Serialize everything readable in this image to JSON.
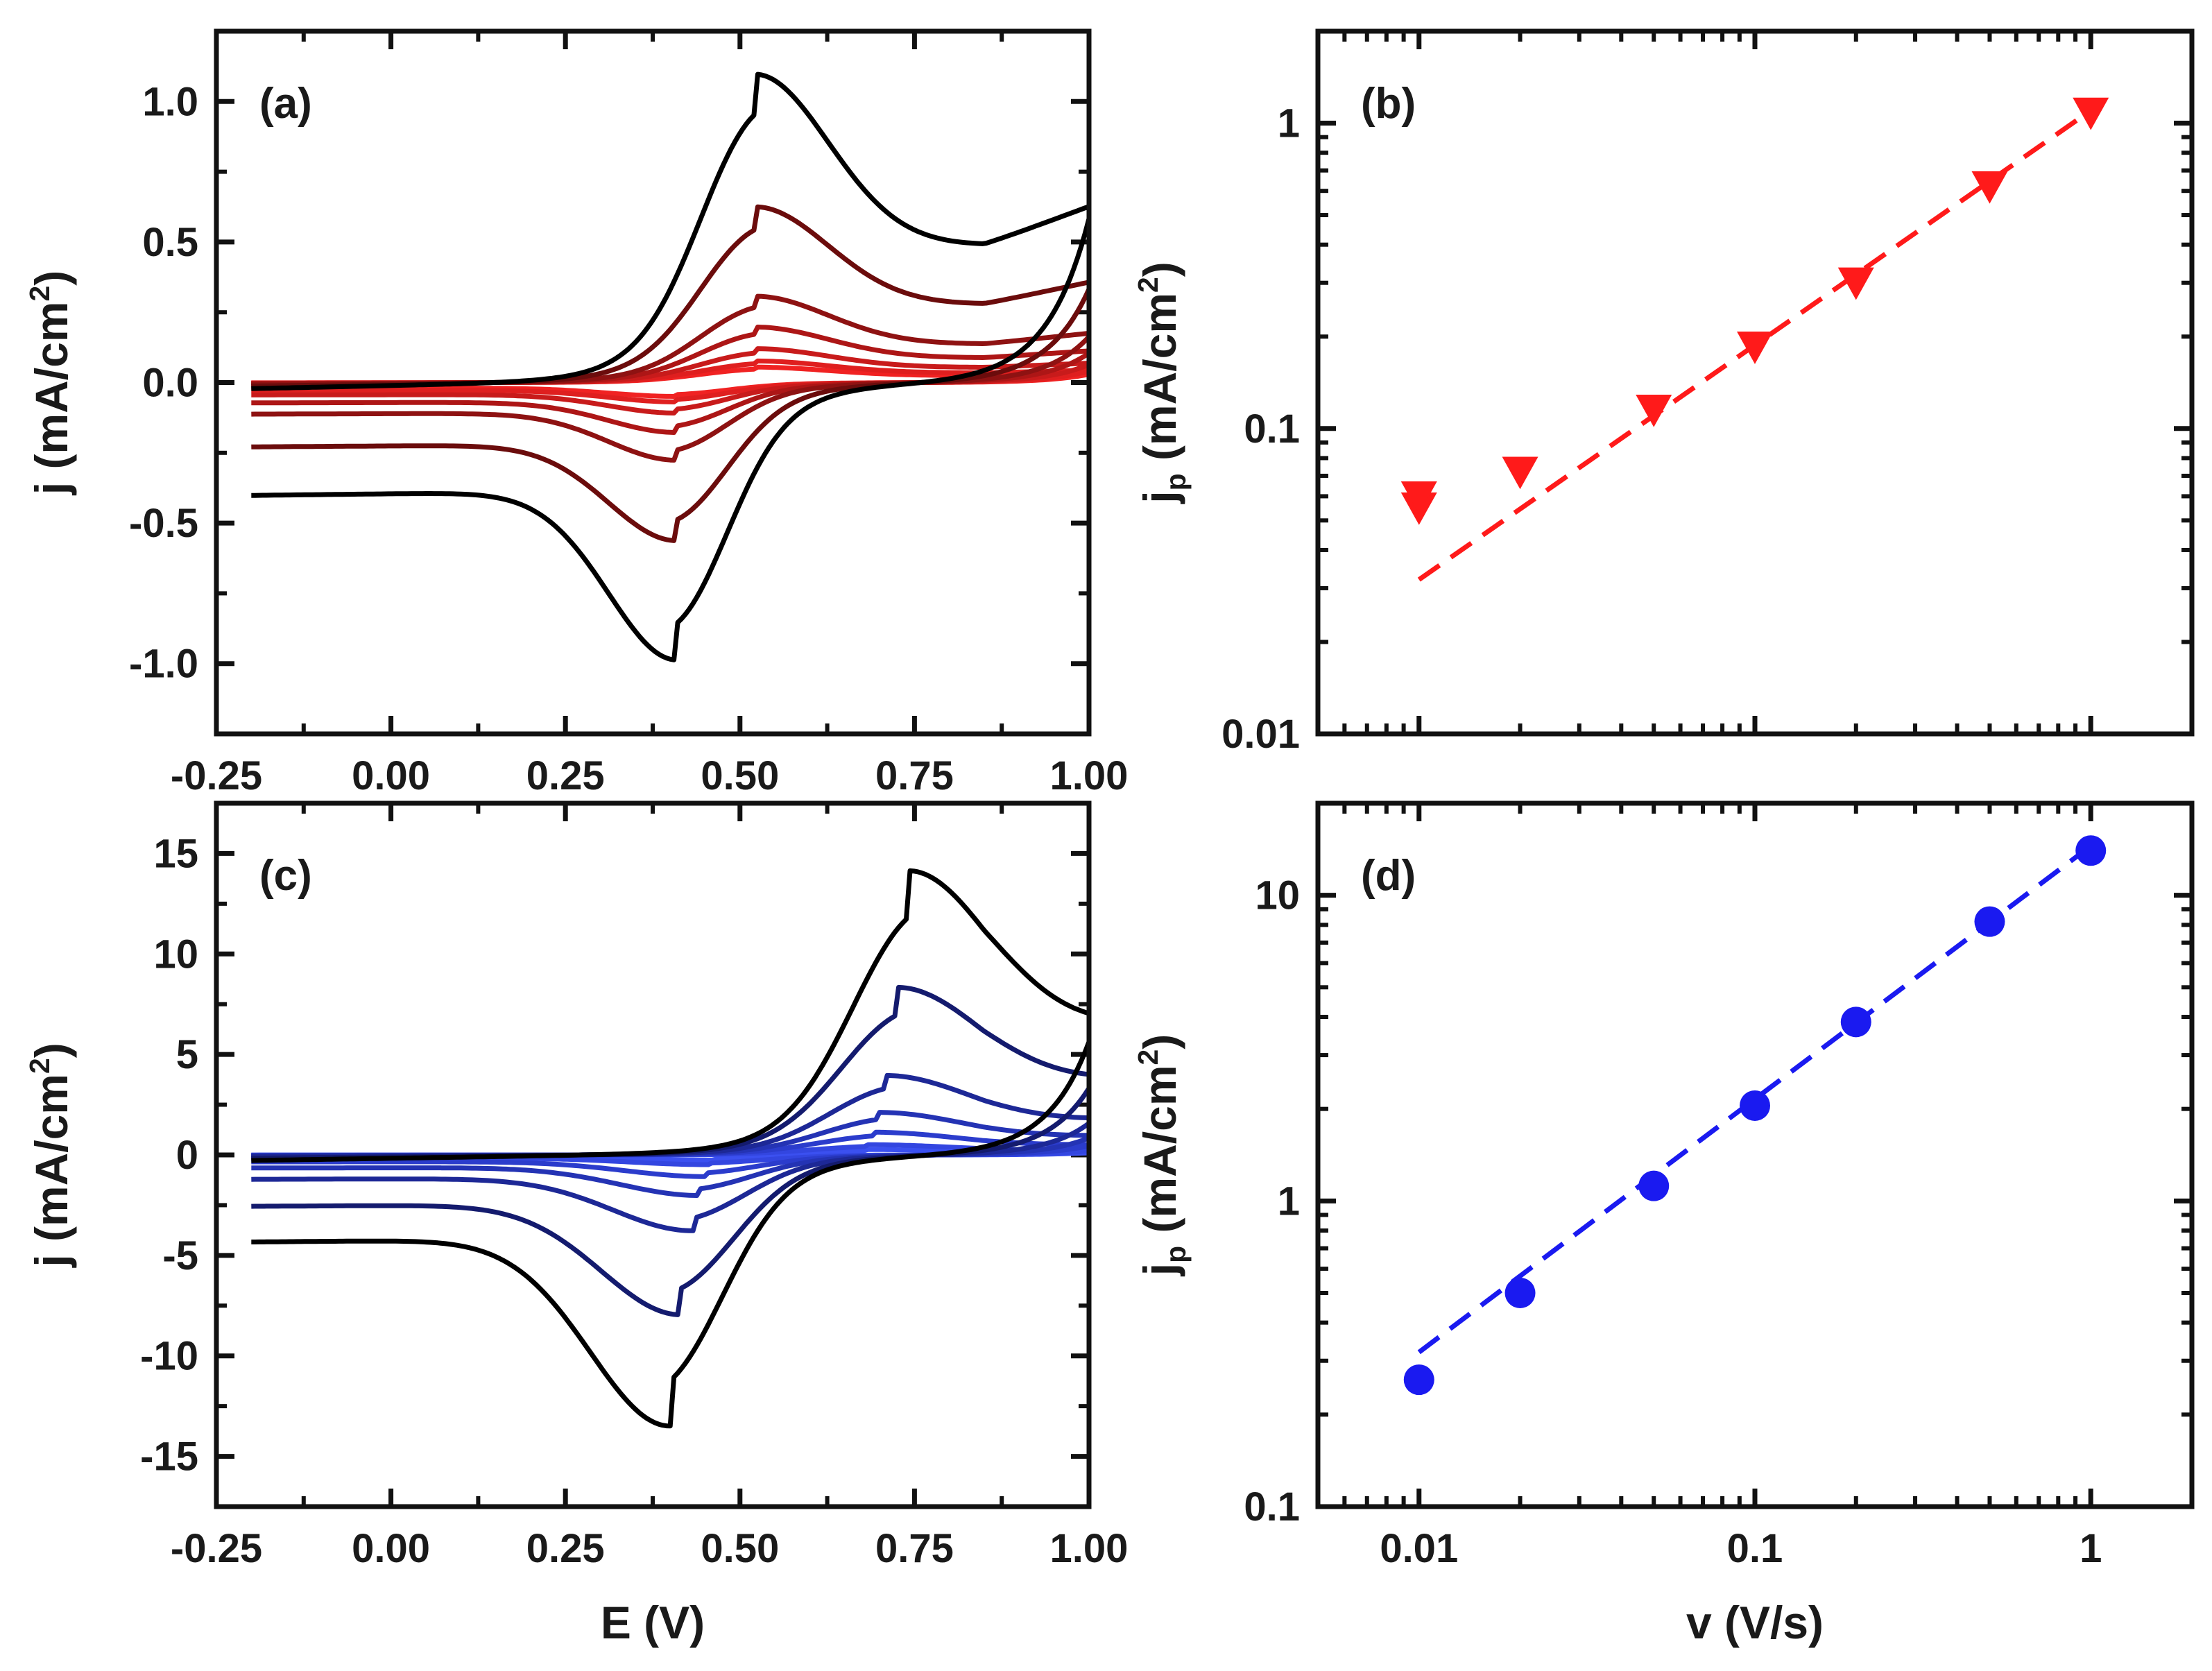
{
  "chart_data": [
    {
      "panel": "a",
      "panel_label": "(a)",
      "type": "line",
      "subtype": "cyclic-voltammogram",
      "xlabel": "E (V)",
      "ylabel_main": "j (mA/cm",
      "ylabel_sup": "2",
      "ylabel_close": ")",
      "xlim": [
        -0.25,
        1.0
      ],
      "ylim": [
        -1.25,
        1.25
      ],
      "xticks": [
        -0.25,
        0.0,
        0.25,
        0.5,
        0.75,
        1.0
      ],
      "xtick_labels": [
        "-0.25",
        "0.00",
        "0.25",
        "0.50",
        "0.75",
        "1.00"
      ],
      "yticks": [
        -1.0,
        -0.5,
        0.0,
        0.5,
        1.0
      ],
      "ytick_labels": [
        "-1.0",
        "-0.5",
        "0.0",
        "0.5",
        "1.0"
      ],
      "show_xtick_labels": true,
      "show_xlabel": false,
      "scan_rate_scale": [
        1.0,
        0.57,
        0.28,
        0.18,
        0.11,
        0.07,
        0.05
      ],
      "colors": [
        "#000000",
        "#6b0c0c",
        "#8e1212",
        "#ad1616",
        "#c81b1b",
        "#df1f1f",
        "#f02222"
      ],
      "cv_peaks": {
        "anodic_E": 0.52,
        "cathodic_E": 0.41,
        "anodic_j": 1.08,
        "cathodic_j": -0.97,
        "anodic_shift": 0.0,
        "cathodic_shift": 0.0,
        "sharpness": 0.12,
        "plateau": 0.42,
        "baseline_slope": 0.05,
        "tail_end": 0.48,
        "start_E": -0.2,
        "end_E": 1.0
      }
    },
    {
      "panel": "b",
      "panel_label": "(b)",
      "type": "scatter",
      "scale": "log-log",
      "xlabel": "",
      "ylabel_main": "j",
      "ylabel_sub": "p",
      "ylabel_rest": " (mA/cm",
      "ylabel_sup": "2",
      "ylabel_close": ")",
      "xlim": [
        0.005,
        2.0
      ],
      "ylim": [
        0.01,
        2.0
      ],
      "xtick_labels": [
        "0.01",
        "0.1",
        "1"
      ],
      "xticks": [
        0.01,
        0.1,
        1
      ],
      "ytick_labels": [
        "0.01",
        "0.1",
        "1"
      ],
      "yticks": [
        0.01,
        0.1,
        1
      ],
      "show_xtick_labels": false,
      "marker": "triangle-down",
      "color": "#ff1a1a",
      "x": [
        0.01,
        0.02,
        0.05,
        0.1,
        0.2,
        0.5,
        1.0
      ],
      "y": [
        0.055,
        0.072,
        0.115,
        0.185,
        0.3,
        0.62,
        1.08
      ],
      "fit": {
        "x": [
          0.01,
          1.0
        ],
        "y": [
          0.032,
          1.1
        ]
      }
    },
    {
      "panel": "c",
      "panel_label": "(c)",
      "type": "line",
      "subtype": "cyclic-voltammogram",
      "xlabel": "E (V)",
      "ylabel_main": "j (mA/cm",
      "ylabel_sup": "2",
      "ylabel_close": ")",
      "xlim": [
        -0.25,
        1.0
      ],
      "ylim": [
        -17.5,
        17.5
      ],
      "xticks": [
        -0.25,
        0.0,
        0.25,
        0.5,
        0.75,
        1.0
      ],
      "xtick_labels": [
        "-0.25",
        "0.00",
        "0.25",
        "0.50",
        "0.75",
        "1.00"
      ],
      "yticks": [
        -15,
        -10,
        -5,
        0,
        5,
        10,
        15
      ],
      "ytick_labels": [
        "-15",
        "-10",
        "-5",
        "0",
        "5",
        "10",
        "15"
      ],
      "show_xtick_labels": true,
      "show_xlabel": true,
      "scan_rate_scale": [
        1.0,
        0.59,
        0.28,
        0.15,
        0.08,
        0.036,
        0.019
      ],
      "colors": [
        "#000000",
        "#141b6e",
        "#1d2896",
        "#2433b4",
        "#2b3ccc",
        "#3346e0",
        "#3b50f0"
      ],
      "cv_peaks": {
        "anodic_E": 0.74,
        "cathodic_E": 0.4,
        "anodic_j": 13.9,
        "cathodic_j": -13.3,
        "anodic_shift": 0.07,
        "cathodic_shift": 0.07,
        "sharpness": 0.14,
        "plateau": 0.33,
        "baseline_slope": 0.04,
        "tail_end": 0.3,
        "start_E": -0.2,
        "end_E": 1.0
      }
    },
    {
      "panel": "d",
      "panel_label": "(d)",
      "type": "scatter",
      "scale": "log-log",
      "xlabel": "v (V/s)",
      "ylabel_main": "j",
      "ylabel_sub": "p",
      "ylabel_rest": " (mA/cm",
      "ylabel_sup": "2",
      "ylabel_close": ")",
      "xlim": [
        0.005,
        2.0
      ],
      "ylim": [
        0.1,
        20.0
      ],
      "xtick_labels": [
        "0.01",
        "0.1",
        "1"
      ],
      "xticks": [
        0.01,
        0.1,
        1
      ],
      "ytick_labels": [
        "0.1",
        "1",
        "10"
      ],
      "yticks": [
        0.1,
        1,
        10
      ],
      "show_xtick_labels": true,
      "marker": "circle",
      "color": "#1a1af0",
      "x": [
        0.01,
        0.02,
        0.05,
        0.1,
        0.2,
        0.5,
        1.0
      ],
      "y": [
        0.26,
        0.5,
        1.12,
        2.05,
        3.85,
        8.2,
        14.0
      ],
      "fit": {
        "x": [
          0.01,
          1.0
        ],
        "y": [
          0.32,
          14.5
        ]
      }
    }
  ]
}
